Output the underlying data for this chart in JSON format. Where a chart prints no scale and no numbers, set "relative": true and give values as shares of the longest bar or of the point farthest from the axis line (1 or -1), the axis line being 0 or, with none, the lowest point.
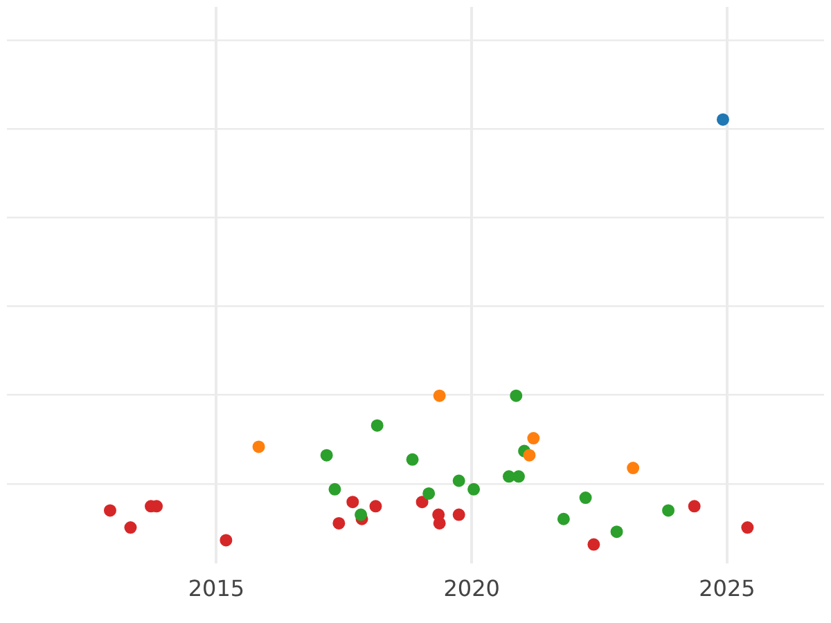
{
  "chart_data": {
    "type": "scatter",
    "relative": true,
    "grid": true,
    "legend": false,
    "marker": "circle",
    "tick_labels": "x",
    "xlim": [
      2010.9,
      2026.9
    ],
    "xticks": [
      2015,
      2020,
      2025
    ],
    "series": [
      {
        "color": "#1f77b4",
        "x": [
          2024.92
        ],
        "values": [
          1.0
        ]
      },
      {
        "color": "#ff7f0e",
        "x": [
          2015.83,
          2019.37,
          2021.21,
          2021.13,
          2023.16
        ],
        "values": [
          0.23,
          0.35,
          0.25,
          0.21,
          0.18
        ]
      },
      {
        "color": "#2ca02c",
        "x": [
          2017.16,
          2017.32,
          2017.83,
          2018.15,
          2018.84,
          2019.16,
          2019.75,
          2020.04,
          2020.87,
          2021.03,
          2020.73,
          2020.92,
          2021.8,
          2022.23,
          2022.84,
          2023.85
        ],
        "values": [
          0.21,
          0.13,
          0.07,
          0.28,
          0.2,
          0.12,
          0.15,
          0.13,
          0.35,
          0.22,
          0.16,
          0.16,
          0.06,
          0.11,
          0.03,
          0.08
        ]
      },
      {
        "color": "#d62728",
        "x": [
          2012.92,
          2013.32,
          2013.72,
          2013.83,
          2015.19,
          2017.4,
          2017.67,
          2017.85,
          2018.12,
          2019.03,
          2019.35,
          2019.37,
          2019.75,
          2022.39,
          2024.36,
          2025.4
        ],
        "values": [
          0.08,
          0.04,
          0.09,
          0.09,
          0.01,
          0.05,
          0.1,
          0.06,
          0.09,
          0.1,
          0.07,
          0.05,
          0.07,
          0,
          0.09,
          0.04
        ]
      }
    ]
  }
}
